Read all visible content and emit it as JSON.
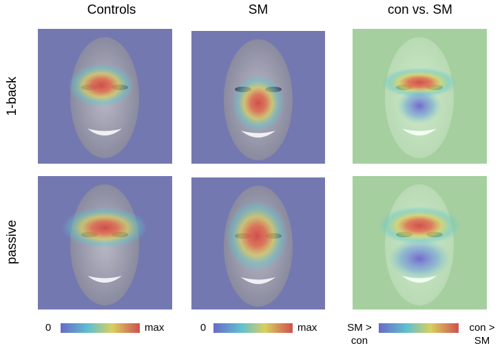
{
  "columns": [
    "Controls",
    "SM",
    "con vs. SM"
  ],
  "rows": [
    "1-back",
    "passive"
  ],
  "colorbars": [
    {
      "min": [
        "0"
      ],
      "max": [
        "max"
      ]
    },
    {
      "min": [
        "0"
      ],
      "max": [
        "max"
      ]
    },
    {
      "min": [
        "SM >",
        "con"
      ],
      "max": [
        "con >",
        "SM"
      ]
    }
  ]
}
